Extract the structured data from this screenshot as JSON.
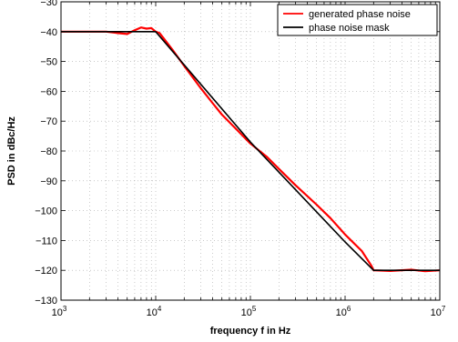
{
  "chart_data": {
    "type": "line",
    "xlabel": "frequency f in Hz",
    "ylabel": "PSD in dBc/Hz",
    "xscale": "log",
    "xlim": [
      1000,
      10000000
    ],
    "ylim": [
      -130,
      -30
    ],
    "grid": true,
    "legend_placement": "top-right",
    "x_tick_labels": [
      {
        "base": "10",
        "exp": "3",
        "value": 1000
      },
      {
        "base": "10",
        "exp": "4",
        "value": 10000
      },
      {
        "base": "10",
        "exp": "5",
        "value": 100000
      },
      {
        "base": "10",
        "exp": "6",
        "value": 1000000
      },
      {
        "base": "10",
        "exp": "7",
        "value": 10000000
      }
    ],
    "y_ticks": [
      -30,
      -40,
      -50,
      -60,
      -70,
      -80,
      -90,
      -100,
      -110,
      -120,
      -130
    ],
    "y_tick_labels": [
      "−30",
      "−40",
      "−50",
      "−60",
      "−70",
      "−80",
      "−90",
      "−100",
      "−110",
      "−120",
      "−130"
    ],
    "series": [
      {
        "name": "generated phase noise",
        "color": "#ff0000",
        "x": [
          1000,
          2000,
          3000,
          4000,
          5000,
          6000,
          7000,
          8000,
          9000,
          10000,
          11000,
          12000,
          15000,
          20000,
          30000,
          40000,
          50000,
          70000,
          100000,
          150000,
          200000,
          300000,
          500000,
          700000,
          1000000,
          1500000,
          1900000,
          2000000,
          3000000,
          5000000,
          7000000,
          10000000
        ],
        "values": [
          -40,
          -40,
          -40,
          -40.5,
          -40.8,
          -39.5,
          -38.6,
          -39,
          -38.8,
          -40,
          -40.5,
          -42,
          -46,
          -51.5,
          -59,
          -64,
          -67.8,
          -72.5,
          -77.5,
          -82,
          -86,
          -91.5,
          -98,
          -102.5,
          -108,
          -113.5,
          -118.5,
          -120,
          -120.2,
          -119.8,
          -120.3,
          -120
        ]
      },
      {
        "name": "phase noise mask",
        "color": "#000000",
        "x": [
          1000,
          10000,
          100000,
          1000000,
          2000000,
          10000000
        ],
        "values": [
          -40,
          -40,
          -77,
          -110.5,
          -120,
          -120
        ]
      }
    ]
  }
}
